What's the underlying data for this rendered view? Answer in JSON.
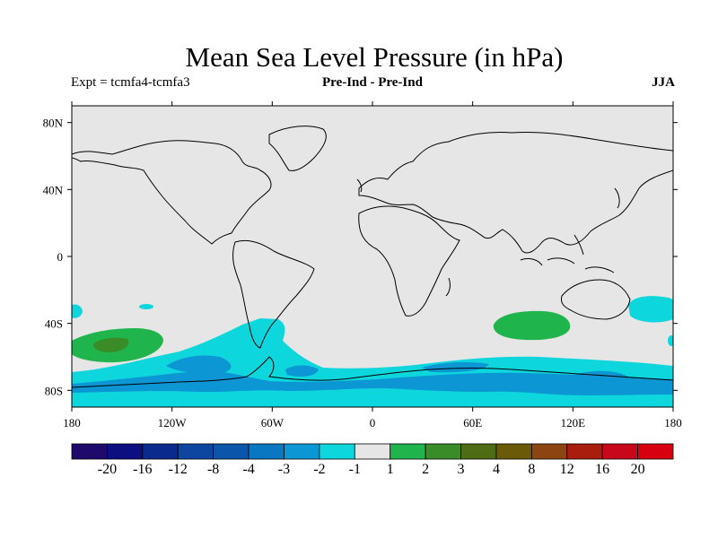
{
  "title": "Mean Sea Level Pressure (in hPa)",
  "subtitle_left": "Expt = tcmfa4-tcmfa3",
  "subtitle_center": "Pre-Ind - Pre-Ind",
  "subtitle_right": "JJA",
  "map": {
    "lat_labels": [
      "80N",
      "40N",
      "0",
      "40S",
      "80S"
    ],
    "lat_values": [
      80,
      40,
      0,
      -40,
      -80
    ],
    "lon_labels": [
      "180",
      "120W",
      "60W",
      "0",
      "60E",
      "120E",
      "180"
    ],
    "lon_values": [
      -180,
      -120,
      -60,
      0,
      60,
      120,
      180
    ],
    "background_color": "#e6e6e6",
    "coastline_color": "#000000"
  },
  "colorbar": {
    "labels": [
      "-20",
      "-16",
      "-12",
      "-8",
      "-4",
      "-3",
      "-2",
      "-1",
      "1",
      "2",
      "3",
      "4",
      "8",
      "12",
      "16",
      "20"
    ],
    "colors": [
      "#1f0a6b",
      "#0c0f80",
      "#0a2a8e",
      "#0c46a0",
      "#0b56aa",
      "#0a77c2",
      "#0c97d4",
      "#0ed6dd",
      "#e6e6e6",
      "#20b44c",
      "#3a8c28",
      "#4e6c14",
      "#6b5a08",
      "#8c4410",
      "#a81d0e",
      "#c8081a",
      "#d60010"
    ]
  }
}
